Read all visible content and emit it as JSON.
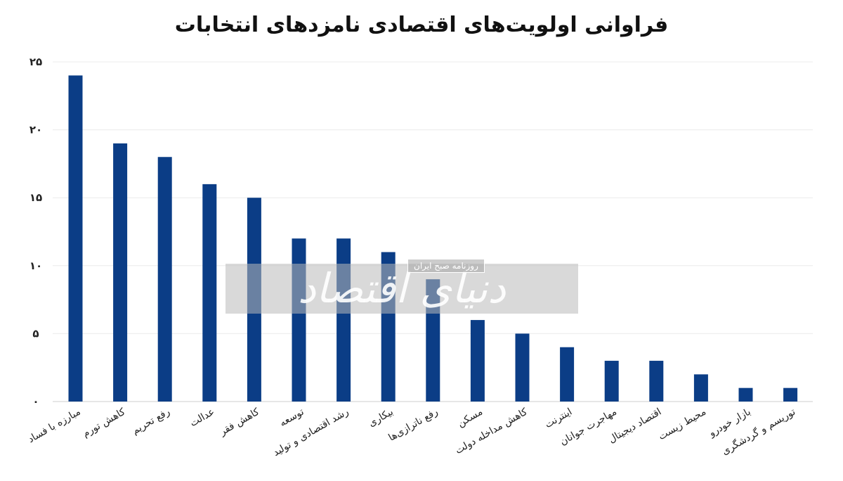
{
  "chart_data": {
    "type": "bar",
    "title": "فراوانی اولویت‌های اقتصادی نامزدهای انتخابات",
    "xlabel": "",
    "ylabel": "",
    "ylim": [
      0,
      25
    ],
    "yticks": [
      "۰",
      "۵",
      "۱۰",
      "۱۵",
      "۲۰",
      "۲۵"
    ],
    "grid": true,
    "legend": "none",
    "bar_color": "#0b3d86",
    "categories": [
      "مبارزه با فساد",
      "کاهش تورم",
      "رفع تحریم",
      "عدالت",
      "کاهش فقر",
      "توسعه",
      "رشد اقتصادی و تولید",
      "بیکاری",
      "رفع ناترازی‌ها",
      "مسکن",
      "کاهش مداخله دولت",
      "اینترنت",
      "مهاجرت جوانان",
      "اقتصاد دیجیتال",
      "محیط زیست",
      "بازار خودرو",
      "توریسم و گردشگری"
    ],
    "values": [
      24,
      19,
      18,
      16,
      15,
      12,
      12,
      11,
      9,
      6,
      5,
      4,
      3,
      3,
      2,
      1,
      1
    ]
  },
  "watermark": {
    "main": "دنیای اقتصاد",
    "sub": "روزنامه صبح ایران"
  }
}
